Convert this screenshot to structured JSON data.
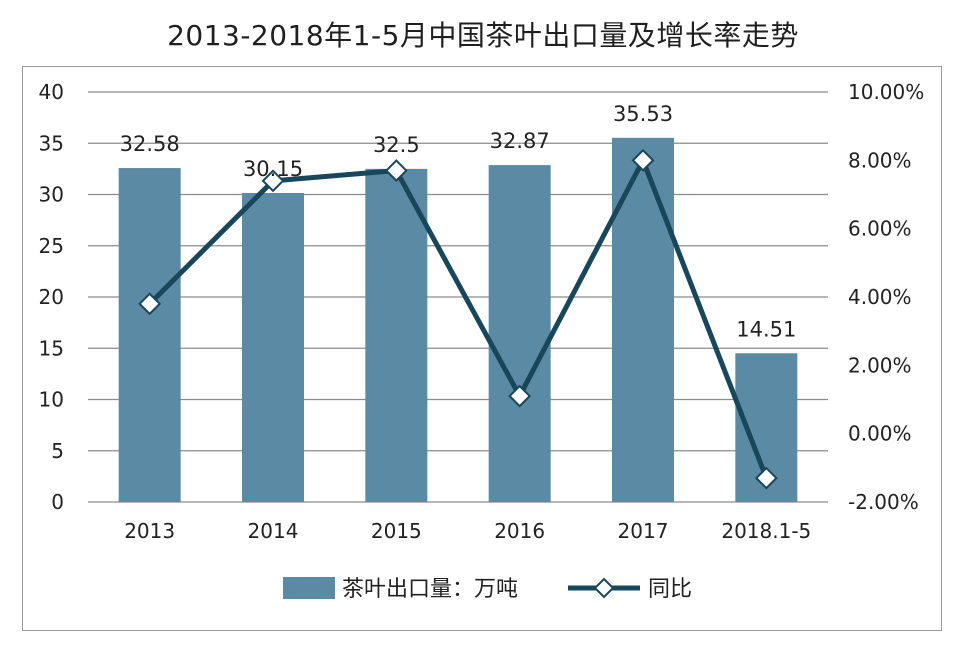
{
  "chart_data": {
    "type": "bar",
    "title": "2013-2018年1-5月中国茶叶出口量及增长率走势",
    "categories": [
      "2013",
      "2014",
      "2015",
      "2016",
      "2017",
      "2018.1-5"
    ],
    "series": [
      {
        "name": "茶叶出口量：万吨",
        "kind": "bar",
        "axis": "left",
        "values": [
          32.58,
          30.15,
          32.5,
          32.87,
          35.53,
          14.51
        ],
        "labels": [
          "32.58",
          "30.15",
          "32.5",
          "32.87",
          "35.53",
          "14.51"
        ],
        "color": "#5b8aa5"
      },
      {
        "name": "同比",
        "kind": "line",
        "axis": "right",
        "values": [
          3.8,
          7.4,
          7.7,
          1.1,
          8.0,
          -1.3
        ],
        "color": "#18465a"
      }
    ],
    "left_axis": {
      "min": 0,
      "max": 40,
      "step": 5,
      "ticks": [
        "0",
        "5",
        "10",
        "15",
        "20",
        "25",
        "30",
        "35",
        "40"
      ]
    },
    "right_axis": {
      "min": -2,
      "max": 10,
      "step": 2,
      "ticks": [
        "-2.00%",
        "0.00%",
        "2.00%",
        "4.00%",
        "6.00%",
        "8.00%",
        "10.00%"
      ]
    },
    "grid": true,
    "legend_position": "bottom"
  }
}
